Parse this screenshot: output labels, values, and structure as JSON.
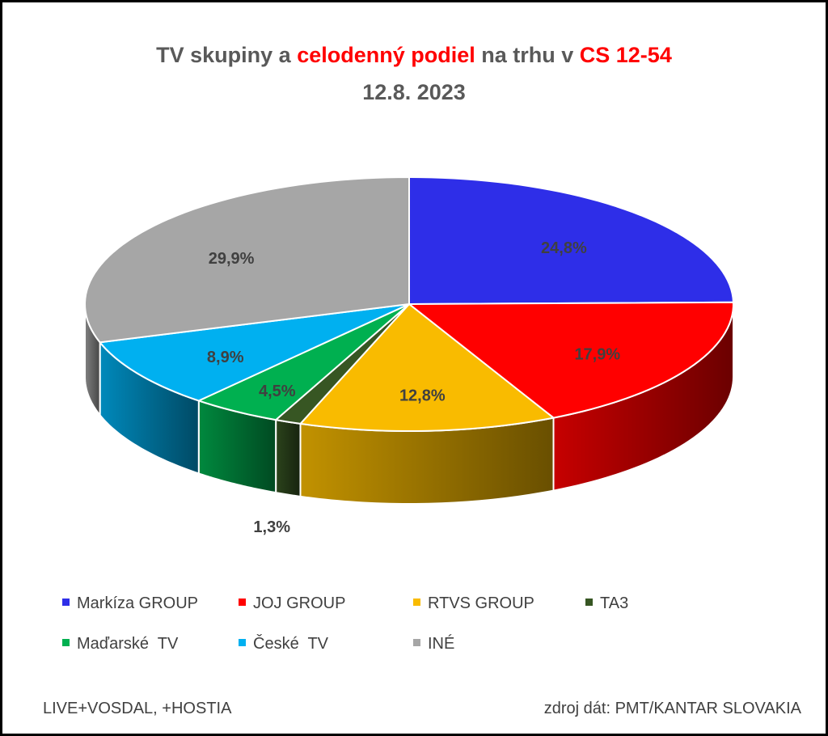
{
  "title": {
    "part1": "TV skupiny a ",
    "part2": "celodenný podiel",
    "part3": " na trhu v ",
    "part4": "CS 12-54",
    "line2": "12.8. 2023"
  },
  "chart_data": {
    "type": "pie",
    "labels": [
      "Markíza GROUP",
      "JOJ GROUP",
      "RTVS GROUP",
      "TA3",
      "Maďarské  TV",
      "České  TV",
      "INÉ"
    ],
    "values": [
      24.8,
      17.9,
      12.8,
      1.3,
      4.5,
      8.9,
      29.9
    ],
    "value_labels": [
      "24,8%",
      "17,9%",
      "12,8%",
      "1,3%",
      "4,5%",
      "8,9%",
      "29,9%"
    ],
    "colors": [
      "#2e2ee8",
      "#ff0000",
      "#f9bb00",
      "#375623",
      "#00b050",
      "#00b0f0",
      "#a6a6a6"
    ],
    "legend_position": "bottom"
  },
  "footer": {
    "left": "LIVE+VOSDAL, +HOSTIA",
    "right": "zdroj dát: PMT/KANTAR SLOVAKIA"
  }
}
